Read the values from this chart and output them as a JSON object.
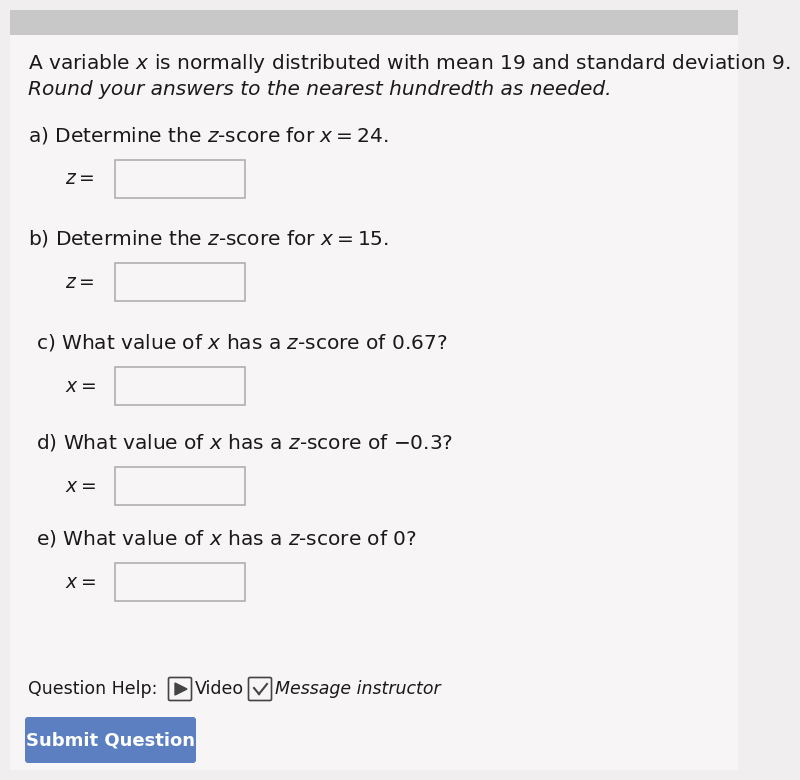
{
  "bg_color": "#f0eeee",
  "top_strip_color": "#c8c8c8",
  "white_bg": "#f7f5f5",
  "title_line1": "A variable $x$ is normally distributed with mean 19 and standard deviation 9.",
  "title_line2": "Round your answers to the nearest hundredth as needed.",
  "questions_labels": [
    "a) Determine the $z$-score for $x = 24$.",
    "b) Determine the $z$-score for $x = 15$.",
    "c) What value of $x$ has a $z$-score of 0.67?",
    "d) What value of $x$ has a $z$-score of $-0.3$?",
    "e) What value of $x$ has a $z$-score of 0?"
  ],
  "prefixes": [
    "$z =$",
    "$z =$",
    "$x =$",
    "$x =$",
    "$x =$"
  ],
  "help_text": "Question Help:",
  "video_text": "Video",
  "message_text": "Message instructor",
  "submit_text": "Submit Question",
  "submit_bg": "#5b7fc0",
  "submit_text_color": "#ffffff",
  "box_fill": "#f7f5f5",
  "box_border": "#b0b0b0",
  "text_color": "#1a1a1a",
  "dark_text": "#444444",
  "font_size_title": 14.5,
  "font_size_q": 14.5,
  "font_size_prefix": 13.5,
  "font_size_help": 12.5,
  "font_size_submit": 13
}
